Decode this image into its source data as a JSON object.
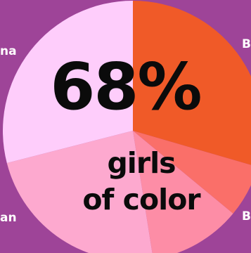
{
  "chart_data": {
    "type": "pie",
    "headline_value": "68%",
    "headline_caption": [
      "girls",
      "of color"
    ],
    "slices": [
      {
        "label": "B",
        "value": 29.5,
        "color": "#f05a28"
      },
      {
        "label": "",
        "value": 6.5,
        "color": "#fa6f69"
      },
      {
        "label": "B",
        "value": 11.5,
        "color": "#fd8da6"
      },
      {
        "label": "an",
        "value": 23.5,
        "color": "#fda9cf"
      },
      {
        "label": "na",
        "value": 29.0,
        "color": "#fecdfb"
      }
    ],
    "edge_labels": {
      "left_top": "na",
      "left_bottom": "an",
      "right_top": "B",
      "right_bottom": "B"
    }
  }
}
